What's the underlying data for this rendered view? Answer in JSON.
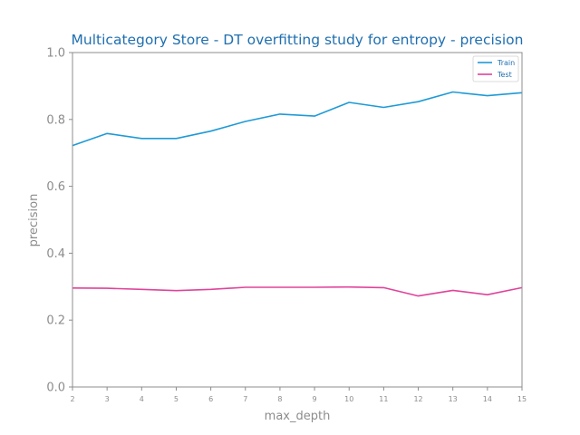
{
  "chart_data": {
    "type": "line",
    "title": "Multicategory Store - DT overfitting study for entropy - precision",
    "xlabel": "max_depth",
    "ylabel": "precision",
    "x": [
      2,
      3,
      4,
      5,
      6,
      7,
      8,
      9,
      10,
      11,
      12,
      13,
      14,
      15
    ],
    "xlim": [
      2,
      15
    ],
    "ylim": [
      0.0,
      1.0
    ],
    "yticks": [
      "0.0",
      "0.2",
      "0.4",
      "0.6",
      "0.8",
      "1.0"
    ],
    "grid": false,
    "legend_position": "top-right",
    "series": [
      {
        "name": "Train",
        "color": "#1f9ad6",
        "values": [
          0.722,
          0.758,
          0.743,
          0.743,
          0.765,
          0.794,
          0.816,
          0.81,
          0.851,
          0.836,
          0.853,
          0.882,
          0.871,
          0.88
        ]
      },
      {
        "name": "Test",
        "color": "#e0439a",
        "values": [
          0.296,
          0.295,
          0.292,
          0.288,
          0.292,
          0.298,
          0.298,
          0.298,
          0.299,
          0.297,
          0.272,
          0.289,
          0.276,
          0.297
        ]
      }
    ]
  }
}
